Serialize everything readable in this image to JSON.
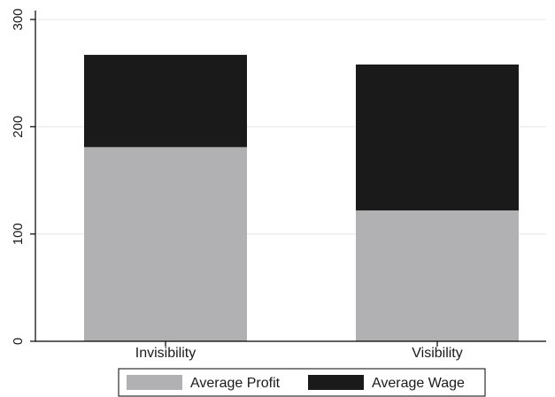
{
  "chart_data": {
    "type": "bar",
    "stacked": true,
    "categories": [
      "Invisibility",
      "Visibility"
    ],
    "series": [
      {
        "name": "Average Profit",
        "values": [
          181,
          122
        ],
        "color": "#b1b1b3"
      },
      {
        "name": "Average Wage",
        "values": [
          86,
          136
        ],
        "color": "#1a1a1a"
      }
    ],
    "title": "",
    "xlabel": "",
    "ylabel": "",
    "ylim": [
      0,
      300
    ],
    "yticks": [
      0,
      100,
      200,
      300
    ],
    "grid": true,
    "legend_position": "bottom"
  }
}
